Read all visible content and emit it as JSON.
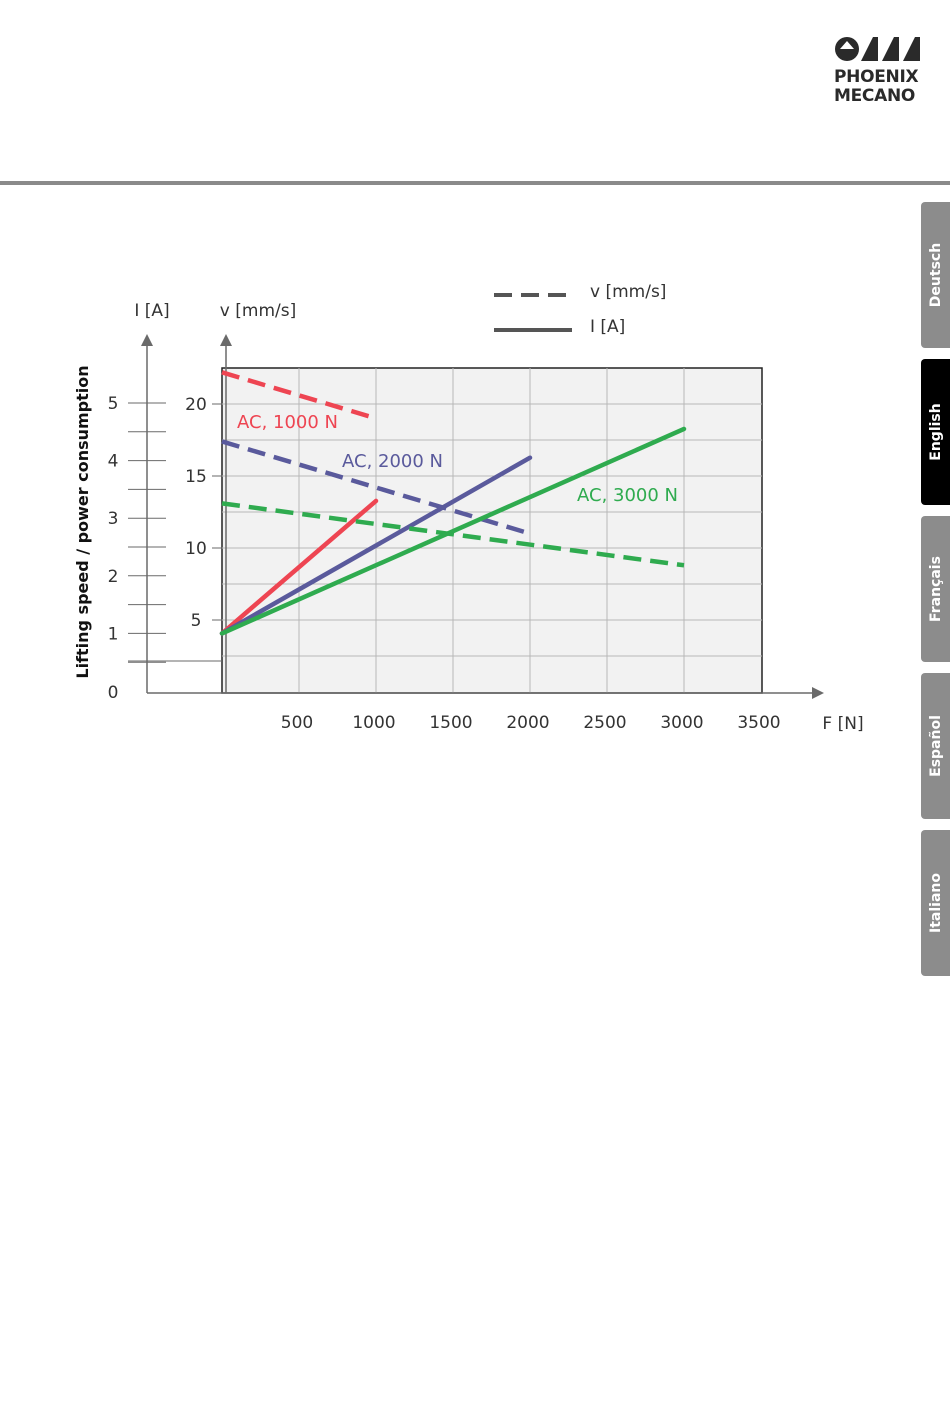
{
  "brand": {
    "line1": "PHOENIX",
    "line2": "MECANO"
  },
  "language_tabs": [
    {
      "label": "Deutsch",
      "active": false
    },
    {
      "label": "English",
      "active": true
    },
    {
      "label": "Français",
      "active": false
    },
    {
      "label": "Español",
      "active": false
    },
    {
      "label": "Italiano",
      "active": false
    }
  ],
  "chart_data": {
    "type": "line",
    "side_label": "Lifting speed / power consumption",
    "xlabel": "F [N]",
    "ylabel_current": "I [A]",
    "ylabel_speed": "v [mm/s]",
    "xlim": [
      0,
      3500
    ],
    "x_ticks": [
      500,
      1000,
      1500,
      2000,
      2500,
      3000,
      3500
    ],
    "speed_ticks": [
      5,
      10,
      15,
      20
    ],
    "current_ticks": [
      0,
      1,
      2,
      3,
      4,
      5
    ],
    "legend": [
      {
        "label": "v [mm/s]",
        "style": "dashed"
      },
      {
        "label": "I [A]",
        "style": "solid"
      }
    ],
    "grid": true,
    "series": [
      {
        "name": "AC, 1000 N",
        "color": "#ee4552",
        "speed": {
          "x": [
            0,
            1000
          ],
          "y": [
            22.2,
            19.0
          ]
        },
        "current": {
          "x": [
            0,
            1000
          ],
          "y": [
            1.0,
            3.3
          ]
        }
      },
      {
        "name": "AC, 2000 N",
        "color": "#5a5a9c",
        "speed": {
          "x": [
            0,
            2000
          ],
          "y": [
            17.4,
            11.0
          ]
        },
        "current": {
          "x": [
            0,
            2000
          ],
          "y": [
            1.0,
            4.05
          ]
        }
      },
      {
        "name": "AC, 3000 N",
        "color": "#2fab4f",
        "speed": {
          "x": [
            0,
            3000
          ],
          "y": [
            13.1,
            8.8
          ]
        },
        "current": {
          "x": [
            0,
            3000
          ],
          "y": [
            1.0,
            4.55
          ]
        }
      }
    ]
  }
}
